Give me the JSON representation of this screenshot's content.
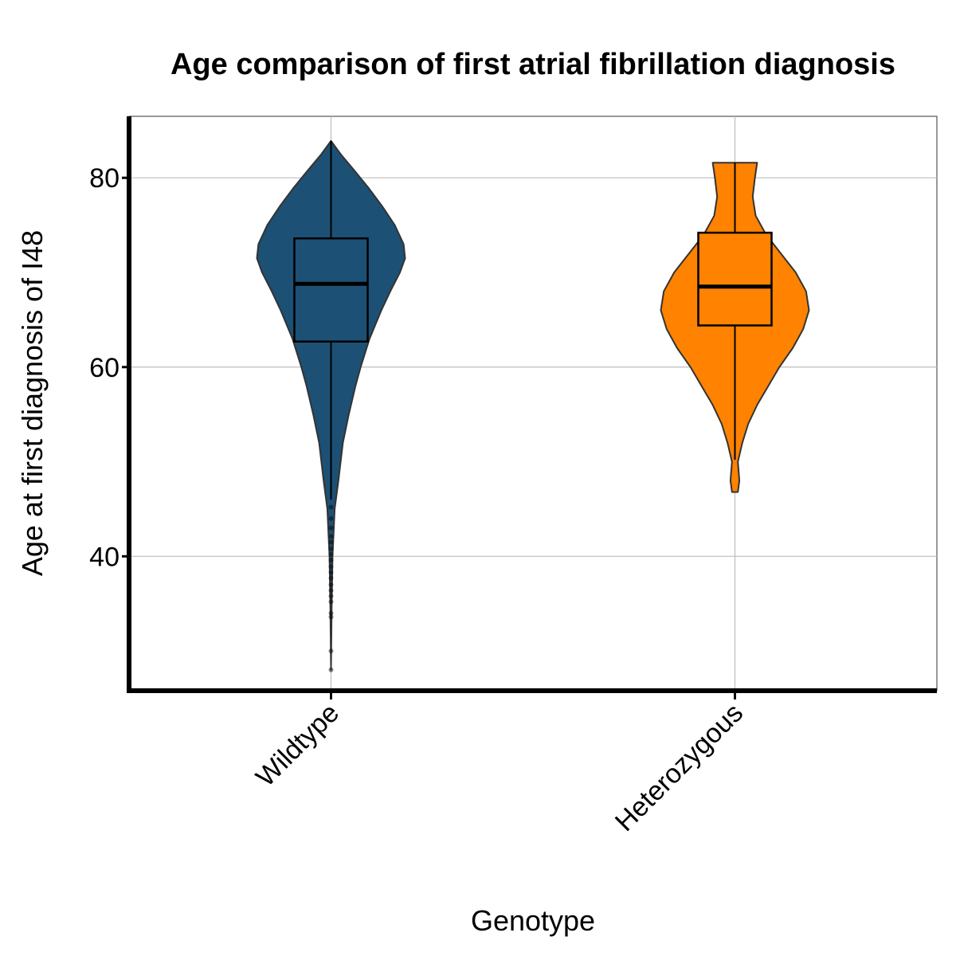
{
  "chart_data": {
    "type": "violin",
    "title": "Age comparison of first atrial fibrillation diagnosis",
    "xlabel": "Genotype",
    "ylabel": "Age at first diagnosis of I48",
    "ylim": [
      25.8,
      86.5
    ],
    "yticks": [
      40,
      60,
      80
    ],
    "grid": true,
    "categories": [
      "Wildtype",
      "Heterozygous"
    ],
    "groups": [
      {
        "name": "Wildtype",
        "color": "#1d5075",
        "violin_min": 28.0,
        "violin_max": 83.9,
        "box": {
          "q1": 62.7,
          "median": 68.8,
          "q3": 73.6,
          "whisker_low": 46.0,
          "whisker_high": 83.9
        },
        "outliers": [
          45.2,
          44.0,
          43.0,
          42.1,
          41.5,
          40.8,
          40.2,
          39.6,
          38.9,
          38.3,
          37.7,
          37.0,
          36.4,
          35.8,
          35.2,
          34.0,
          33.6,
          30.0,
          28.0
        ],
        "density": [
          [
            28.0,
            0.0
          ],
          [
            35.0,
            0.01
          ],
          [
            40.0,
            0.02
          ],
          [
            45.0,
            0.05
          ],
          [
            48.0,
            0.1
          ],
          [
            52.0,
            0.16
          ],
          [
            55.0,
            0.24
          ],
          [
            58.0,
            0.33
          ],
          [
            60.0,
            0.4
          ],
          [
            63.0,
            0.52
          ],
          [
            66.0,
            0.68
          ],
          [
            68.0,
            0.8
          ],
          [
            70.0,
            0.93
          ],
          [
            71.5,
            1.0
          ],
          [
            73.0,
            0.98
          ],
          [
            75.0,
            0.86
          ],
          [
            77.0,
            0.69
          ],
          [
            79.0,
            0.5
          ],
          [
            81.0,
            0.29
          ],
          [
            82.5,
            0.13
          ],
          [
            83.9,
            0.0
          ]
        ]
      },
      {
        "name": "Heterozygous",
        "color": "#ff8200",
        "violin_min": 46.8,
        "violin_max": 81.6,
        "box": {
          "q1": 64.4,
          "median": 68.5,
          "q3": 74.2,
          "whisker_low": 50.2,
          "whisker_high": 81.6
        },
        "outliers": [],
        "density": [
          [
            46.8,
            0.04
          ],
          [
            48.0,
            0.06
          ],
          [
            50.0,
            0.04
          ],
          [
            52.0,
            0.1
          ],
          [
            54.0,
            0.18
          ],
          [
            56.0,
            0.3
          ],
          [
            58.0,
            0.45
          ],
          [
            60.0,
            0.6
          ],
          [
            62.0,
            0.78
          ],
          [
            64.0,
            0.92
          ],
          [
            66.0,
            1.0
          ],
          [
            68.0,
            0.96
          ],
          [
            70.0,
            0.82
          ],
          [
            72.0,
            0.62
          ],
          [
            74.0,
            0.42
          ],
          [
            76.0,
            0.28
          ],
          [
            78.0,
            0.24
          ],
          [
            80.0,
            0.27
          ],
          [
            81.6,
            0.3
          ]
        ]
      }
    ]
  }
}
